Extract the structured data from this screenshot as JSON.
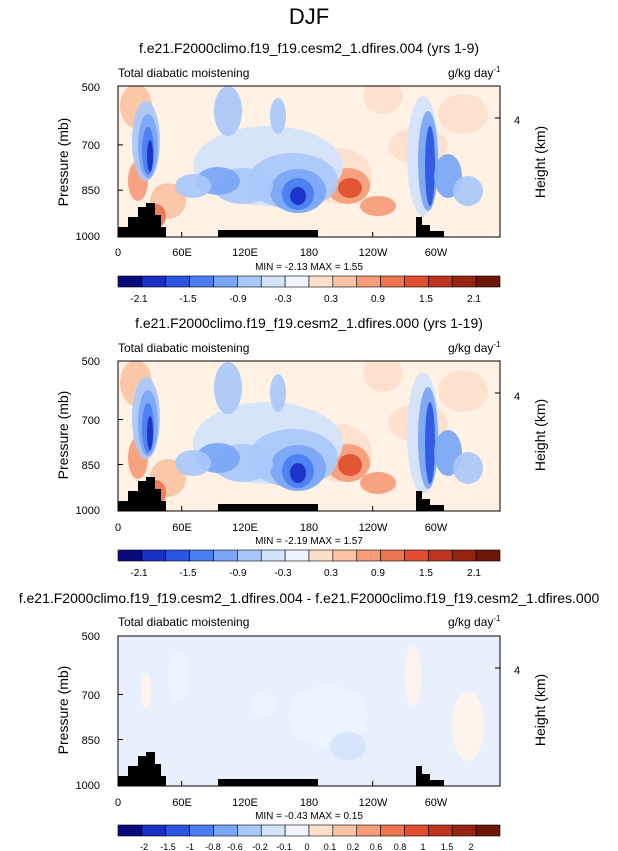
{
  "page_title": "DJF",
  "colors": {
    "ocean_land": "#000000",
    "palette": [
      "#0a0a7a",
      "#1a2fc4",
      "#2b55e0",
      "#4a7ef0",
      "#7aa6f5",
      "#a9c8f9",
      "#d2e3fc",
      "#eef4fe",
      "#fff4ea",
      "#fde0cc",
      "#fbc3a4",
      "#f69c78",
      "#ee7450",
      "#e04e2f",
      "#c0341f",
      "#96250f",
      "#6e1608"
    ]
  },
  "chart_data": [
    {
      "type": "heatmap",
      "title": "f.e21.F2000climo.f19_f19.cesm2_1.dfires.004 (yrs 1-9)",
      "left_label": "Total diabatic moistening",
      "right_label": "g/kg day",
      "right_label_sup": "-1",
      "ylabel": "Pressure (mb)",
      "ylabel_right": "Height (km)",
      "yticks": [
        "500",
        "700",
        "850",
        "1000"
      ],
      "yticks_right": [
        "4"
      ],
      "xticks": [
        "0",
        "60E",
        "120E",
        "180",
        "120W",
        "60W"
      ],
      "stats": "MIN = -2.13 MAX = 1.55",
      "colorbar_labels": [
        "-2.1",
        "-1.5",
        "-0.9",
        "-0.3",
        "0.3",
        "0.9",
        "1.5",
        "2.1"
      ],
      "xlim": [
        0,
        360
      ],
      "ylim": [
        1000,
        500
      ]
    },
    {
      "type": "heatmap",
      "title": "f.e21.F2000climo.f19_f19.cesm2_1.dfires.000 (yrs 1-19)",
      "left_label": "Total diabatic moistening",
      "right_label": "g/kg day",
      "right_label_sup": "-1",
      "ylabel": "Pressure (mb)",
      "ylabel_right": "Height (km)",
      "yticks": [
        "500",
        "700",
        "850",
        "1000"
      ],
      "yticks_right": [
        "4"
      ],
      "xticks": [
        "0",
        "60E",
        "120E",
        "180",
        "120W",
        "60W"
      ],
      "stats": "MIN = -2.19 MAX = 1.57",
      "colorbar_labels": [
        "-2.1",
        "-1.5",
        "-0.9",
        "-0.3",
        "0.3",
        "0.9",
        "1.5",
        "2.1"
      ],
      "xlim": [
        0,
        360
      ],
      "ylim": [
        1000,
        500
      ]
    },
    {
      "type": "heatmap",
      "title": "f.e21.F2000climo.f19_f19.cesm2_1.dfires.004 - f.e21.F2000climo.f19_f19.cesm2_1.dfires.000",
      "left_label": "Total diabatic moistening",
      "right_label": "g/kg day",
      "right_label_sup": "-1",
      "ylabel": "Pressure (mb)",
      "ylabel_right": "Height (km)",
      "yticks": [
        "500",
        "700",
        "850",
        "1000"
      ],
      "yticks_right": [
        "4"
      ],
      "xticks": [
        "0",
        "60E",
        "120E",
        "180",
        "120W",
        "60W"
      ],
      "stats": "MIN = -0.43 MAX = 0.15",
      "colorbar_labels": [
        "-2",
        "-1.5",
        "-1",
        "-0.8",
        "-0.6",
        "-0.2",
        "-0.1",
        "0",
        "0.1",
        "0.2",
        "0.6",
        "0.8",
        "1",
        "1.5",
        "2"
      ],
      "xlim": [
        0,
        360
      ],
      "ylim": [
        1000,
        500
      ]
    }
  ]
}
